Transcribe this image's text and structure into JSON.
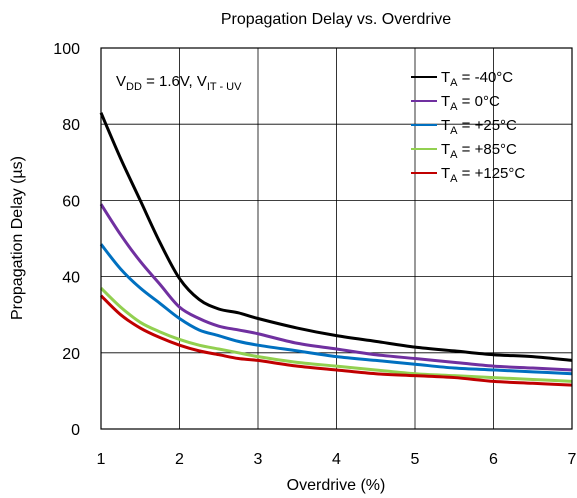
{
  "chart_data": {
    "type": "line",
    "title": "Propagation Delay vs. Overdrive",
    "xlabel": "Overdrive (%)",
    "ylabel": "Propagation Delay (µs)",
    "xlim": [
      1,
      7
    ],
    "ylim": [
      0,
      100
    ],
    "x_ticks": [
      "1",
      "2",
      "3",
      "4",
      "5",
      "6",
      "7"
    ],
    "y_ticks": [
      "0",
      "20",
      "40",
      "60",
      "80",
      "100"
    ],
    "grid": true,
    "legend_placement": "top-right",
    "annotation": {
      "v": "V",
      "dd_sub": "DD",
      "mid": " = 1.6V, V",
      "it_sub": "IT - UV"
    },
    "series": [
      {
        "name": "TA = -40°C",
        "legend_prefix": "T",
        "legend_sub": "A",
        "legend_suffix": " = -40°C",
        "color": "#000000",
        "x": [
          1,
          1.25,
          1.5,
          1.75,
          2,
          2.25,
          2.5,
          2.75,
          3,
          3.5,
          4,
          4.5,
          5,
          5.5,
          6,
          6.5,
          7
        ],
        "values": [
          83,
          71,
          60,
          49,
          39.5,
          34,
          31.5,
          30.5,
          29,
          26.5,
          24.5,
          23,
          21.5,
          20.5,
          19.5,
          19,
          18
        ]
      },
      {
        "name": "TA = 0°C",
        "legend_prefix": "T",
        "legend_sub": "A",
        "legend_suffix": " = 0°C",
        "color": "#7030a0",
        "x": [
          1,
          1.25,
          1.5,
          1.75,
          2,
          2.25,
          2.5,
          2.75,
          3,
          3.5,
          4,
          4.5,
          5,
          5.5,
          6,
          6.5,
          7
        ],
        "values": [
          59,
          51,
          44,
          38,
          32,
          29,
          27,
          26,
          25,
          22.5,
          21,
          19.5,
          18.5,
          17.5,
          16.5,
          16,
          15.5
        ]
      },
      {
        "name": "TA = +25°C",
        "legend_prefix": "T",
        "legend_sub": "A",
        "legend_suffix": " = +25°C",
        "color": "#0070c0",
        "x": [
          1,
          1.25,
          1.5,
          1.75,
          2,
          2.25,
          2.5,
          2.75,
          3,
          3.5,
          4,
          4.5,
          5,
          5.5,
          6,
          6.5,
          7
        ],
        "values": [
          48.5,
          42,
          37,
          33,
          29,
          26,
          24.5,
          23,
          22,
          20.5,
          19,
          18,
          17,
          16,
          15.5,
          15,
          14.5
        ]
      },
      {
        "name": "TA = +85°C",
        "legend_prefix": "T",
        "legend_sub": "A",
        "legend_suffix": " = +85°C",
        "color": "#92d050",
        "x": [
          1,
          1.25,
          1.5,
          1.75,
          2,
          2.25,
          2.5,
          2.75,
          3,
          3.5,
          4,
          4.5,
          5,
          5.5,
          6,
          6.5,
          7
        ],
        "values": [
          37,
          32,
          28,
          25.5,
          23.5,
          22,
          21,
          20,
          19,
          17.5,
          16.5,
          15.5,
          14.5,
          14,
          13.5,
          13,
          12.5
        ]
      },
      {
        "name": "TA = +125°C",
        "legend_prefix": "T",
        "legend_sub": "A",
        "legend_suffix": " = +125°C",
        "color": "#c00000",
        "x": [
          1,
          1.25,
          1.5,
          1.75,
          2,
          2.25,
          2.5,
          2.75,
          3,
          3.5,
          4,
          4.5,
          5,
          5.5,
          6,
          6.5,
          7
        ],
        "values": [
          35,
          30,
          26.5,
          24,
          22,
          20.5,
          19.5,
          18.5,
          18,
          16.5,
          15.5,
          14.5,
          14,
          13.5,
          12.5,
          12,
          11.5
        ]
      }
    ]
  }
}
